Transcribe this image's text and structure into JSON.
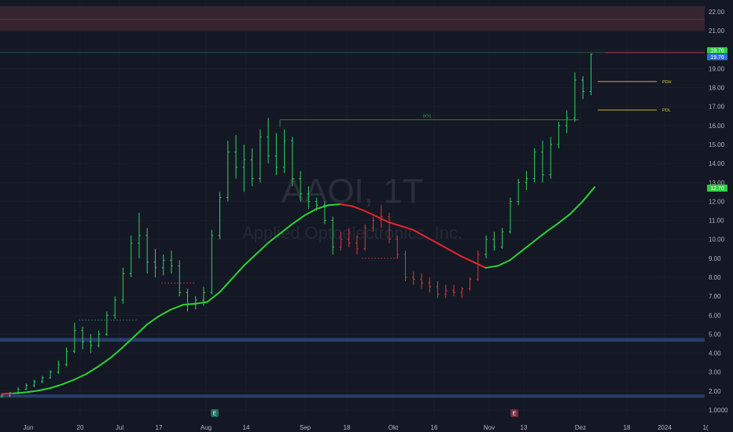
{
  "watermark": {
    "symbol": "AAOI, 1T",
    "company": "Applied Optoelectronics, Inc."
  },
  "colors": {
    "background": "#141824",
    "bar_up": "#33d05a",
    "bar_down": "#e0343a",
    "ma_up": "#2bd332",
    "ma_down": "#e6252e",
    "zone_red": "#3a2530",
    "zone_blue": "#28406e",
    "level_yellow": "#d6d02a",
    "badge_green": "#2ecc40",
    "badge_blue": "#2f6fe0",
    "grid": "#1e2230"
  },
  "chart_data": {
    "type": "ohlc-bar",
    "yaxis": {
      "scale": "linear",
      "ticks": [
        "22.00",
        "21.00",
        "20.00",
        "19.00",
        "18.00",
        "17.00",
        "16.00",
        "15.00",
        "14.00",
        "13.00",
        "12.00",
        "11.00",
        "10.00",
        "9.00",
        "8.00",
        "7.00",
        "6.00",
        "5.00",
        "4.00",
        "3.00",
        "2.00",
        "1.0000"
      ],
      "ylim": [
        0.8,
        22.4
      ]
    },
    "xaxis": {
      "ticks": [
        "Jun",
        "20",
        "Jul",
        "17",
        "Aug",
        "14",
        "Sep",
        "18",
        "Okt",
        "16",
        "Nov",
        "13",
        "Dez",
        "18",
        "2024",
        "1("
      ]
    },
    "last_price_labels": [
      {
        "text": "19.76"
      },
      {
        "text": "19.76"
      }
    ],
    "ma_price_label": "12.70",
    "level_labels": {
      "pdh": "PDH",
      "pdl": "PDL",
      "level_top": "BOS"
    },
    "event_badges": [
      "E",
      "E"
    ],
    "zones": [
      {
        "color": "red",
        "y_range": [
          21.0,
          22.3
        ]
      },
      {
        "color": "blue",
        "y_range": [
          4.6,
          4.8
        ]
      },
      {
        "color": "blue",
        "y_range": [
          1.65,
          1.82
        ]
      }
    ],
    "levels": [
      {
        "name": "top",
        "value": 19.85
      },
      {
        "name": "PDH",
        "value": 18.32
      },
      {
        "name": "PDL",
        "value": 16.82
      },
      {
        "name": "BOS",
        "value": 16.3
      }
    ],
    "ma": [
      [
        0,
        1.85
      ],
      [
        3,
        1.88
      ],
      [
        6,
        1.93
      ],
      [
        9,
        2.02
      ],
      [
        12,
        2.15
      ],
      [
        15,
        2.35
      ],
      [
        18,
        2.6
      ],
      [
        21,
        2.9
      ],
      [
        24,
        3.3
      ],
      [
        27,
        3.75
      ],
      [
        30,
        4.3
      ],
      [
        33,
        4.9
      ],
      [
        36,
        5.5
      ],
      [
        39,
        5.95
      ],
      [
        42,
        6.3
      ],
      [
        45,
        6.55
      ],
      [
        48,
        6.6
      ],
      [
        51,
        6.7
      ],
      [
        54,
        7.2
      ],
      [
        57,
        7.9
      ],
      [
        60,
        8.6
      ],
      [
        63,
        9.2
      ],
      [
        66,
        9.8
      ],
      [
        69,
        10.3
      ],
      [
        72,
        10.8
      ],
      [
        75,
        11.25
      ],
      [
        78,
        11.6
      ],
      [
        81,
        11.8
      ],
      [
        84,
        11.85
      ],
      [
        87,
        11.75
      ],
      [
        90,
        11.5
      ],
      [
        93,
        11.2
      ],
      [
        96,
        10.9
      ],
      [
        99,
        10.7
      ],
      [
        102,
        10.5
      ],
      [
        105,
        10.15
      ],
      [
        108,
        9.8
      ],
      [
        111,
        9.45
      ],
      [
        114,
        9.1
      ],
      [
        117,
        8.8
      ],
      [
        120,
        8.5
      ],
      [
        123,
        8.6
      ],
      [
        126,
        8.9
      ],
      [
        129,
        9.4
      ],
      [
        132,
        9.9
      ],
      [
        135,
        10.4
      ],
      [
        138,
        10.85
      ],
      [
        141,
        11.35
      ],
      [
        144,
        12.0
      ],
      [
        146,
        12.5
      ],
      [
        147,
        12.75
      ]
    ],
    "ohlc": [
      [
        0,
        1.7,
        1.8,
        1.65,
        1.75
      ],
      [
        2,
        1.75,
        1.95,
        1.7,
        1.9
      ],
      [
        4,
        1.9,
        2.2,
        1.85,
        2.1
      ],
      [
        6,
        2.1,
        2.4,
        2.05,
        2.3
      ],
      [
        8,
        2.3,
        2.6,
        2.2,
        2.5
      ],
      [
        10,
        2.5,
        2.8,
        2.4,
        2.7
      ],
      [
        12,
        2.7,
        3.1,
        2.65,
        3.0
      ],
      [
        14,
        3.0,
        3.6,
        2.9,
        3.4
      ],
      [
        16,
        3.4,
        4.3,
        3.3,
        4.1
      ],
      [
        18,
        4.1,
        5.6,
        4.0,
        5.2
      ],
      [
        20,
        5.2,
        5.4,
        4.2,
        4.6
      ],
      [
        22,
        4.6,
        5.0,
        4.0,
        4.4
      ],
      [
        24,
        4.4,
        5.2,
        4.3,
        5.0
      ],
      [
        26,
        5.0,
        6.2,
        4.9,
        6.0
      ],
      [
        28,
        6.0,
        7.0,
        5.8,
        6.8
      ],
      [
        30,
        6.8,
        8.5,
        6.6,
        8.2
      ],
      [
        32,
        8.2,
        10.2,
        8.0,
        9.8
      ],
      [
        34,
        9.8,
        11.4,
        9.0,
        10.2
      ],
      [
        36,
        10.2,
        10.6,
        8.2,
        8.8
      ],
      [
        38,
        8.8,
        9.5,
        8.0,
        8.5
      ],
      [
        40,
        8.5,
        9.2,
        8.1,
        8.9
      ],
      [
        42,
        8.9,
        9.4,
        8.2,
        8.6
      ],
      [
        44,
        8.6,
        8.9,
        7.0,
        7.2
      ],
      [
        46,
        7.2,
        7.4,
        6.2,
        6.6
      ],
      [
        48,
        6.6,
        7.0,
        6.3,
        6.8
      ],
      [
        50,
        6.8,
        7.5,
        6.5,
        7.2
      ],
      [
        52,
        7.2,
        10.5,
        7.1,
        10.2
      ],
      [
        54,
        10.2,
        12.5,
        10.0,
        12.2
      ],
      [
        56,
        12.2,
        15.2,
        12.0,
        14.6
      ],
      [
        58,
        14.6,
        15.5,
        13.2,
        13.8
      ],
      [
        60,
        13.8,
        15.0,
        12.5,
        14.2
      ],
      [
        62,
        14.2,
        14.8,
        12.8,
        13.2
      ],
      [
        64,
        13.2,
        15.8,
        13.0,
        15.4
      ],
      [
        66,
        15.4,
        16.4,
        14.0,
        14.4
      ],
      [
        68,
        14.4,
        15.6,
        13.4,
        13.8
      ],
      [
        70,
        13.8,
        15.8,
        13.5,
        15.2
      ],
      [
        72,
        15.2,
        15.4,
        12.8,
        13.2
      ],
      [
        74,
        13.2,
        13.6,
        12.0,
        12.4
      ],
      [
        76,
        12.4,
        12.8,
        11.6,
        12.0
      ],
      [
        78,
        12.0,
        12.2,
        11.5,
        11.8
      ],
      [
        80,
        11.8,
        12.0,
        10.8,
        11.0
      ],
      [
        82,
        11.0,
        11.2,
        9.2,
        9.6
      ],
      [
        84,
        9.6,
        10.4,
        9.4,
        10.0
      ],
      [
        86,
        10.0,
        10.6,
        9.6,
        9.8
      ],
      [
        88,
        9.8,
        10.2,
        9.2,
        9.5
      ],
      [
        90,
        9.5,
        10.8,
        9.4,
        10.6
      ],
      [
        92,
        10.6,
        11.2,
        10.4,
        11.0
      ],
      [
        94,
        11.0,
        11.8,
        10.6,
        11.2
      ],
      [
        96,
        11.2,
        11.4,
        9.8,
        10.0
      ],
      [
        98,
        10.0,
        10.2,
        9.0,
        9.2
      ],
      [
        100,
        9.2,
        9.4,
        7.8,
        8.0
      ],
      [
        102,
        8.0,
        8.3,
        7.6,
        7.9
      ],
      [
        104,
        7.9,
        8.2,
        7.4,
        7.7
      ],
      [
        106,
        7.7,
        8.0,
        7.2,
        7.5
      ],
      [
        108,
        7.5,
        7.8,
        6.9,
        7.1
      ],
      [
        110,
        7.1,
        7.6,
        6.9,
        7.3
      ],
      [
        112,
        7.3,
        7.6,
        7.0,
        7.2
      ],
      [
        114,
        7.2,
        7.5,
        6.9,
        7.4
      ],
      [
        116,
        7.4,
        8.0,
        7.3,
        7.9
      ],
      [
        118,
        7.9,
        9.4,
        7.8,
        9.2
      ],
      [
        120,
        9.2,
        10.2,
        9.0,
        10.0
      ],
      [
        122,
        10.0,
        10.4,
        9.4,
        9.6
      ],
      [
        124,
        9.6,
        10.6,
        9.5,
        10.4
      ],
      [
        126,
        10.4,
        12.2,
        10.3,
        12.0
      ],
      [
        128,
        12.0,
        13.2,
        11.8,
        13.0
      ],
      [
        130,
        13.0,
        13.6,
        12.6,
        13.2
      ],
      [
        132,
        13.2,
        14.8,
        13.0,
        14.6
      ],
      [
        134,
        14.6,
        15.2,
        13.0,
        13.4
      ],
      [
        136,
        13.4,
        15.4,
        13.2,
        15.0
      ],
      [
        138,
        15.0,
        16.2,
        14.8,
        16.0
      ],
      [
        140,
        16.0,
        16.8,
        15.6,
        16.4
      ],
      [
        142,
        16.4,
        18.8,
        16.2,
        18.4
      ],
      [
        144,
        18.4,
        18.6,
        17.4,
        17.8
      ],
      [
        146,
        17.8,
        19.8,
        17.6,
        19.76
      ]
    ]
  }
}
